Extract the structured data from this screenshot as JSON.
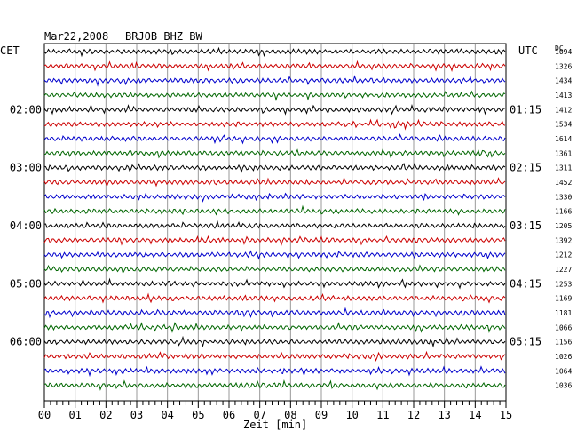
{
  "header": {
    "date": "Mar22,2008",
    "station": "BRJOB BHZ BW",
    "left_zone": "CET",
    "right_zone": "UTC",
    "dc_label": "DC"
  },
  "chart_data": {
    "type": "line",
    "title": "Mar22,2008   BRJOB BHZ BW",
    "xlabel": "Zeit [min]",
    "x_ticks": [
      "00",
      "01",
      "02",
      "03",
      "04",
      "05",
      "06",
      "07",
      "08",
      "09",
      "10",
      "11",
      "12",
      "13",
      "14",
      "15"
    ],
    "xlim": [
      0,
      15
    ],
    "grid": true,
    "row_count": 24,
    "trace_colors": [
      "#000000",
      "#cc0000",
      "#0000cc",
      "#006600"
    ],
    "left_time_labels": [
      {
        "row": 4,
        "label": "02:00"
      },
      {
        "row": 8,
        "label": "03:00"
      },
      {
        "row": 12,
        "label": "04:00"
      },
      {
        "row": 16,
        "label": "05:00"
      },
      {
        "row": 20,
        "label": "06:00"
      }
    ],
    "right_time_labels": [
      {
        "row": 4,
        "label": "01:15"
      },
      {
        "row": 8,
        "label": "02:15"
      },
      {
        "row": 12,
        "label": "03:15"
      },
      {
        "row": 16,
        "label": "04:15"
      },
      {
        "row": 20,
        "label": "05:15"
      }
    ],
    "dc_offsets": [
      1094,
      1326,
      1434,
      1413,
      1412,
      1534,
      1614,
      1361,
      1311,
      1452,
      1330,
      1166,
      1205,
      1392,
      1212,
      1227,
      1253,
      1169,
      1181,
      1066,
      1156,
      1026,
      1064,
      1036
    ]
  }
}
